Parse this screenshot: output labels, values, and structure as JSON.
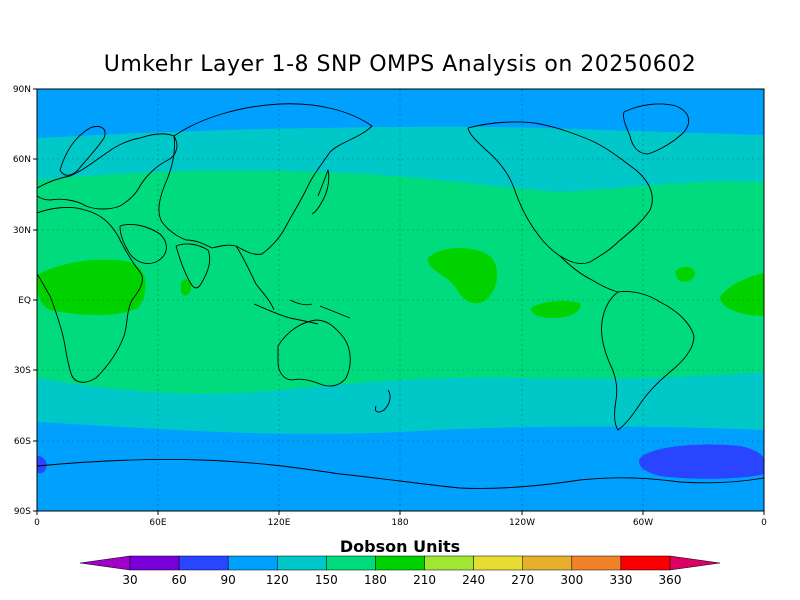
{
  "title": "Umkehr Layer 1-8 SNP OMPS Analysis on 20250602",
  "colorbar": {
    "title": "Dobson Units",
    "ticks": [
      "30",
      "60",
      "90",
      "120",
      "150",
      "180",
      "210",
      "240",
      "270",
      "300",
      "330",
      "360"
    ],
    "colors": [
      "#a000c8",
      "#7800dc",
      "#2a45ff",
      "#00a0ff",
      "#00c8c8",
      "#00dc7d",
      "#00d200",
      "#a0e632",
      "#e6dc32",
      "#e6af2d",
      "#f08228",
      "#fa0000",
      "#dc0064"
    ]
  },
  "axes": {
    "lat_labels": [
      "90N",
      "60N",
      "30N",
      "EQ",
      "30S",
      "60S",
      "90S"
    ],
    "lon_labels": [
      "0",
      "60E",
      "120E",
      "180",
      "120W",
      "60W",
      "0"
    ]
  },
  "chart_data": {
    "type": "heatmap",
    "title": "Umkehr Layer 1-8 SNP OMPS Analysis on 20250602",
    "units": "Dobson Units",
    "legend_placement": "bottom",
    "grid": true,
    "x_range": [
      0,
      360
    ],
    "y_range": [
      -90,
      90
    ],
    "latitude_bands": [
      {
        "lat_min": 70,
        "lat_max": 90,
        "value_range": "120-150"
      },
      {
        "lat_min": 50,
        "lat_max": 70,
        "value_range": "150-180"
      },
      {
        "lat_min": -30,
        "lat_max": 50,
        "value_range": "180-210"
      },
      {
        "lat_min": -50,
        "lat_max": -30,
        "value_range": "150-180"
      },
      {
        "lat_min": -90,
        "lat_max": -50,
        "value_range": "120-150"
      }
    ],
    "features": [
      {
        "region": "Africa / Indian Ocean tropics",
        "value_range": "210-240"
      },
      {
        "region": "Central Pacific near 20N",
        "value_range": "210-240"
      },
      {
        "region": "Southeast Pacific near EQ",
        "value_range": "210-240"
      },
      {
        "region": "Tropical Atlantic",
        "value_range": "210-240"
      },
      {
        "region": "South Atlantic near 70S",
        "value_range": "90-120"
      },
      {
        "region": "Edge near 70S, 0E",
        "value_range": "90-120"
      }
    ]
  }
}
